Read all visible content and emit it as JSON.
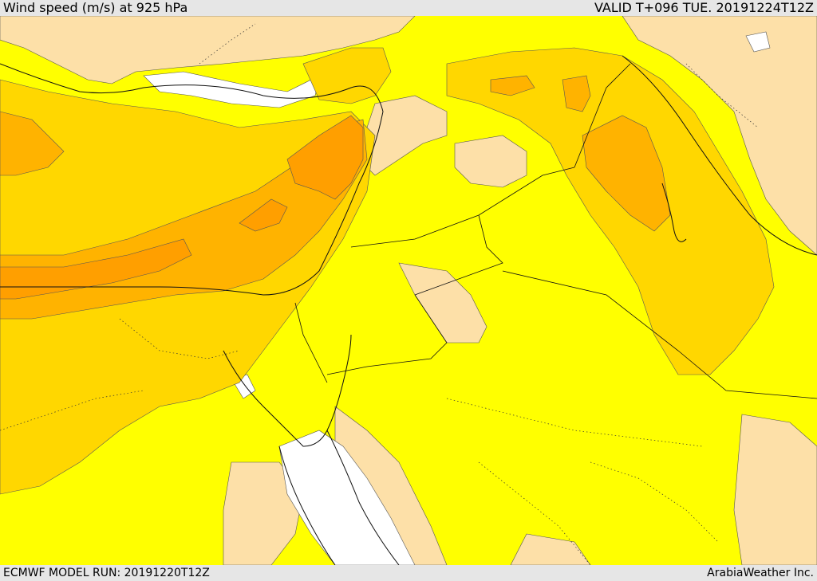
{
  "header": {
    "title": "Wind speed (m/s) at 925 hPa",
    "valid": "VALID T+096 TUE. 20191224T12Z"
  },
  "footer": {
    "model_run": "ECMWF MODEL RUN: 20191220T12Z",
    "credit": "ArabiaWeather Inc."
  },
  "colors": {
    "very_low": "#ffffff",
    "low": "#fde0a8",
    "mid": "#ffff00",
    "high": "#ffd700",
    "higher": "#ffb300",
    "highest": "#ff9f00",
    "outline": "#333333"
  }
}
